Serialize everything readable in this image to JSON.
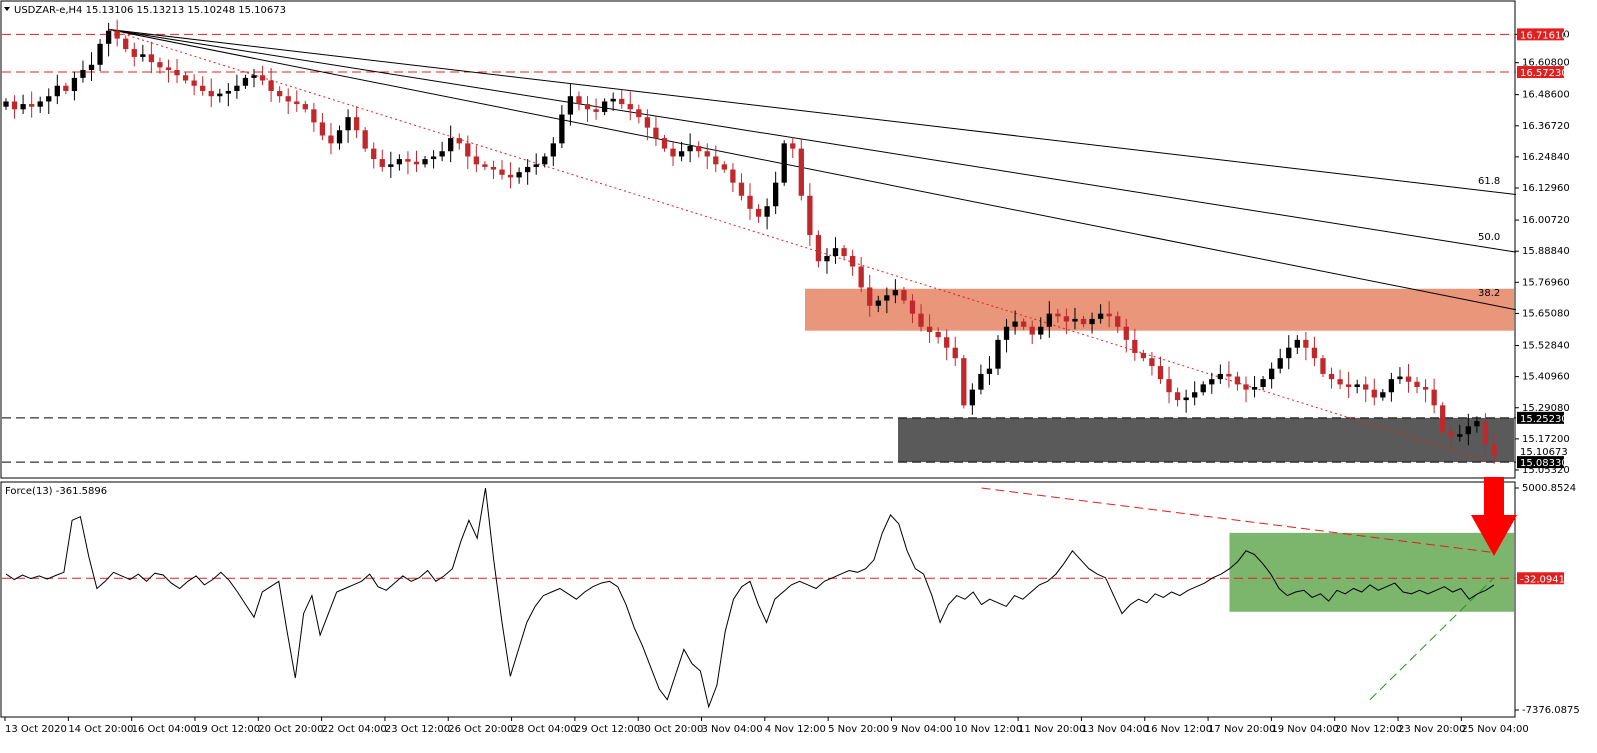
{
  "main_title": "USDZAR-e,H4  15.13106 15.13213 15.10248 15.10673",
  "force_title": "Force(13) -361.5896",
  "colors": {
    "bull": "#000000",
    "bear": "#c0282c",
    "resistance_zone": "#e9967a",
    "support_zone": "#5a5a5a",
    "force_zone": "#7cb66c",
    "level_red": "#e02020",
    "arrow": "#ff0000"
  },
  "chart_data": [
    {
      "type": "candlestick",
      "title": "USDZAR-e,H4",
      "ylim": [
        15.0532,
        16.79
      ],
      "price_ticks": [
        "16.71610",
        "16.60800",
        "16.48600",
        "16.36720",
        "16.24840",
        "16.12960",
        "16.00720",
        "15.88840",
        "15.76960",
        "15.65080",
        "15.52840",
        "15.40960",
        "15.29080",
        "15.17200",
        "15.05320"
      ],
      "highlighted_levels": [
        {
          "value": 16.7161,
          "label": "16.71610"
        },
        {
          "value": 16.5723,
          "label": "16.57230"
        },
        {
          "value": 15.2523,
          "label": "15.25230"
        },
        {
          "value": 15.0833,
          "label": "15.08330"
        }
      ],
      "current_price_label": "15.10673",
      "resistance_zone": {
        "from": 15.585,
        "to": 15.745
      },
      "support_zone": {
        "from": 15.0833,
        "to": 15.2523
      },
      "fib_labels": [
        "38.2",
        "50.0",
        "61.8"
      ],
      "fib_fan_origin": 16.735,
      "fib_fan_ends": [
        15.665,
        15.885,
        16.105
      ],
      "red_trendline": [
        16.735,
        15.09
      ],
      "closes": [
        16.46,
        16.43,
        16.45,
        16.44,
        16.46,
        16.48,
        16.52,
        16.5,
        16.55,
        16.58,
        16.6,
        16.68,
        16.73,
        16.7,
        16.66,
        16.63,
        16.64,
        16.61,
        16.59,
        16.58,
        16.56,
        16.54,
        16.52,
        16.5,
        16.48,
        16.49,
        16.5,
        16.52,
        16.55,
        16.56,
        16.54,
        16.5,
        16.48,
        16.46,
        16.45,
        16.43,
        16.38,
        16.33,
        16.3,
        16.35,
        16.4,
        16.35,
        16.28,
        16.24,
        16.21,
        16.22,
        16.24,
        16.23,
        16.22,
        16.24,
        16.25,
        16.27,
        16.32,
        16.3,
        16.25,
        16.22,
        16.21,
        16.2,
        16.18,
        16.17,
        16.19,
        16.21,
        16.22,
        16.25,
        16.3,
        16.41,
        16.48,
        16.45,
        16.43,
        16.42,
        16.46,
        16.47,
        16.45,
        16.43,
        16.4,
        16.36,
        16.32,
        16.28,
        16.25,
        16.27,
        16.29,
        16.27,
        16.25,
        16.22,
        16.2,
        16.15,
        16.1,
        16.05,
        16.02,
        16.06,
        16.15,
        16.3,
        16.28,
        16.1,
        15.95,
        15.85,
        15.87,
        15.9,
        15.87,
        15.83,
        15.75,
        15.68,
        15.7,
        15.72,
        15.74,
        15.7,
        15.65,
        15.6,
        15.58,
        15.56,
        15.52,
        15.48,
        15.3,
        15.36,
        15.42,
        15.44,
        15.55,
        15.6,
        15.62,
        15.6,
        15.57,
        15.6,
        15.65,
        15.64,
        15.62,
        15.63,
        15.61,
        15.63,
        15.65,
        15.64,
        15.6,
        15.55,
        15.5,
        15.48,
        15.45,
        15.4,
        15.35,
        15.32,
        15.33,
        15.35,
        15.38,
        15.4,
        15.42,
        15.41,
        15.38,
        15.36,
        15.37,
        15.4,
        15.44,
        15.48,
        15.52,
        15.55,
        15.52,
        15.48,
        15.42,
        15.4,
        15.38,
        15.37,
        15.38,
        15.36,
        15.33,
        15.35,
        15.4,
        15.41,
        15.39,
        15.37,
        15.36,
        15.3,
        15.2,
        15.18,
        15.19,
        15.22,
        15.24,
        15.15,
        15.107
      ]
    },
    {
      "type": "line",
      "title": "Force(13)",
      "ylim": [
        -7376.0875,
        5000.8524
      ],
      "y_ticks": [
        "5000.8524",
        "-7376.0875"
      ],
      "level": {
        "value": -32.0941,
        "label": "-32.0941"
      },
      "zone": {
        "from_series_index": 102,
        "from": -1900,
        "to": 2500
      },
      "upper_trendline": {
        "start_index": 58,
        "start": 5000,
        "end": 1400
      },
      "lower_trendline": {
        "start_index": 80,
        "start": -6800,
        "end": 0
      },
      "values": [
        200,
        -100,
        150,
        -50,
        100,
        -80,
        120,
        300,
        3200,
        3400,
        1200,
        -600,
        -200,
        300,
        100,
        -100,
        200,
        -200,
        250,
        150,
        -300,
        -600,
        -200,
        100,
        -400,
        -100,
        300,
        -150,
        -800,
        -1500,
        -2200,
        -800,
        -500,
        -200,
        -3000,
        -5600,
        -2000,
        -1000,
        -3200,
        -2000,
        -800,
        -600,
        -400,
        -200,
        200,
        -500,
        -700,
        -300,
        100,
        -200,
        0,
        400,
        -200,
        100,
        500,
        2000,
        3200,
        2200,
        5000,
        1000,
        -2500,
        -5500,
        -4000,
        -2500,
        -1600,
        -1000,
        -800,
        -600,
        -900,
        -1200,
        -800,
        -500,
        -300,
        -200,
        -500,
        -1500,
        -2800,
        -3800,
        -5000,
        -6200,
        -6800,
        -5400,
        -4000,
        -4800,
        -5200,
        -7200,
        -6000,
        -3000,
        -1200,
        -500,
        -200,
        -1500,
        -2500,
        -1200,
        -800,
        -400,
        -200,
        -400,
        -600,
        -200,
        0,
        200,
        400,
        300,
        500,
        1000,
        2500,
        3500,
        3000,
        1500,
        500,
        200,
        -1000,
        -2500,
        -1500,
        -1000,
        -1200,
        -800,
        -1500,
        -1200,
        -1400,
        -1600,
        -1000,
        -1200,
        -800,
        -400,
        -200,
        200,
        800,
        1500,
        1000,
        500,
        200,
        0,
        -1000,
        -2000,
        -1500,
        -1200,
        -1400,
        -900,
        -1100,
        -800,
        -1000,
        -700,
        -500,
        -300,
        0,
        200,
        500,
        900,
        1500,
        1300,
        800,
        200,
        -600,
        -1000,
        -800,
        -700,
        -1100,
        -900,
        -1300,
        -700,
        -900,
        -600,
        -800,
        -400,
        -700,
        -500,
        -300,
        -800,
        -900,
        -700,
        -900,
        -700,
        -500,
        -800,
        -600,
        -1200,
        -900,
        -700,
        -400
      ]
    }
  ],
  "time_labels": [
    "13 Oct 2020",
    "14 Oct 20:00",
    "16 Oct 04:00",
    "19 Oct 12:00",
    "20 Oct 20:00",
    "22 Oct 04:00",
    "23 Oct 12:00",
    "26 Oct 20:00",
    "28 Oct 04:00",
    "29 Oct 12:00",
    "30 Oct 20:00",
    "3 Nov 04:00",
    "4 Nov 12:00",
    "5 Nov 20:00",
    "9 Nov 04:00",
    "10 Nov 12:00",
    "11 Nov 20:00",
    "13 Nov 04:00",
    "16 Nov 12:00",
    "17 Nov 20:00",
    "19 Nov 04:00",
    "20 Nov 12:00",
    "23 Nov 20:00",
    "25 Nov 04:00"
  ]
}
